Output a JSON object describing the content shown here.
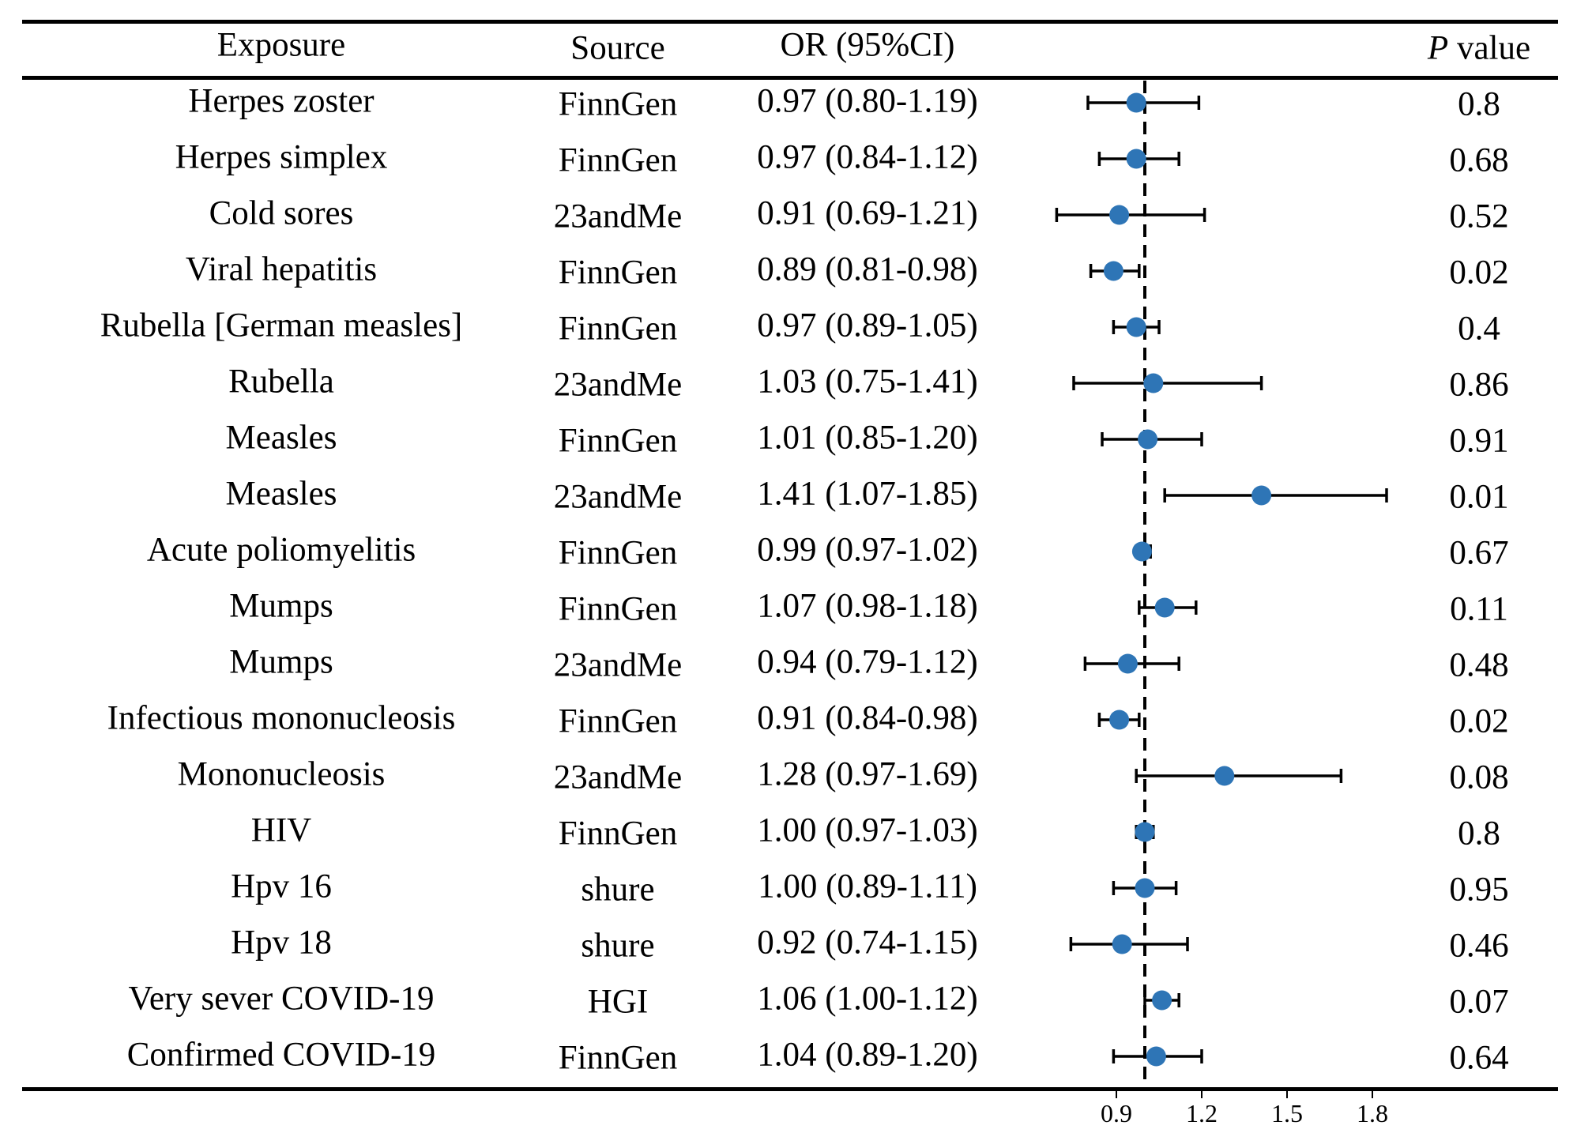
{
  "header": {
    "exposure": "Exposure",
    "source": "Source",
    "or": "OR (95%CI)",
    "p_italic": "P",
    "p_rest": " value"
  },
  "rows": [
    {
      "exposure": "Herpes zoster",
      "source": "FinnGen",
      "or_text": "0.97 (0.80-1.19)",
      "p": "0.8"
    },
    {
      "exposure": "Herpes simplex",
      "source": "FinnGen",
      "or_text": "0.97 (0.84-1.12)",
      "p": "0.68"
    },
    {
      "exposure": "Cold sores",
      "source": "23andMe",
      "or_text": "0.91 (0.69-1.21)",
      "p": "0.52"
    },
    {
      "exposure": "Viral hepatitis",
      "source": "FinnGen",
      "or_text": "0.89 (0.81-0.98)",
      "p": "0.02"
    },
    {
      "exposure": "Rubella [German measles]",
      "source": "FinnGen",
      "or_text": "0.97 (0.89-1.05)",
      "p": "0.4"
    },
    {
      "exposure": "Rubella",
      "source": "23andMe",
      "or_text": "1.03 (0.75-1.41)",
      "p": "0.86"
    },
    {
      "exposure": "Measles",
      "source": "FinnGen",
      "or_text": "1.01 (0.85-1.20)",
      "p": "0.91"
    },
    {
      "exposure": "Measles",
      "source": "23andMe",
      "or_text": "1.41 (1.07-1.85)",
      "p": "0.01"
    },
    {
      "exposure": "Acute poliomyelitis",
      "source": "FinnGen",
      "or_text": "0.99 (0.97-1.02)",
      "p": "0.67"
    },
    {
      "exposure": "Mumps",
      "source": "FinnGen",
      "or_text": "1.07 (0.98-1.18)",
      "p": "0.11"
    },
    {
      "exposure": "Mumps",
      "source": "23andMe",
      "or_text": "0.94 (0.79-1.12)",
      "p": "0.48"
    },
    {
      "exposure": "Infectious mononucleosis",
      "source": "FinnGen",
      "or_text": "0.91 (0.84-0.98)",
      "p": "0.02"
    },
    {
      "exposure": "Mononucleosis",
      "source": "23andMe",
      "or_text": "1.28 (0.97-1.69)",
      "p": "0.08"
    },
    {
      "exposure": "HIV",
      "source": "FinnGen",
      "or_text": "1.00 (0.97-1.03)",
      "p": "0.8"
    },
    {
      "exposure": "Hpv 16",
      "source": "shure",
      "or_text": "1.00 (0.89-1.11)",
      "p": "0.95"
    },
    {
      "exposure": "Hpv 18",
      "source": "shure",
      "or_text": "0.92 (0.74-1.15)",
      "p": "0.46"
    },
    {
      "exposure": "Very sever COVID-19",
      "source": "HGI",
      "or_text": "1.06 (1.00-1.12)",
      "p": "0.07"
    },
    {
      "exposure": "Confirmed COVID-19",
      "source": "FinnGen",
      "or_text": "1.04 (0.89-1.20)",
      "p": "0.64"
    }
  ],
  "chart_data": {
    "type": "forest",
    "xlabel": "",
    "ylabel": "",
    "reference_line": 1.0,
    "xticks": [
      0.9,
      1.2,
      1.5,
      1.8
    ],
    "xlim": [
      0.6,
      1.9
    ],
    "point_color": "#2e75b6",
    "series": [
      {
        "name": "OR (95%CI)",
        "points": [
          {
            "label": "Herpes zoster",
            "or": 0.97,
            "lo": 0.8,
            "hi": 1.19
          },
          {
            "label": "Herpes simplex",
            "or": 0.97,
            "lo": 0.84,
            "hi": 1.12
          },
          {
            "label": "Cold sores",
            "or": 0.91,
            "lo": 0.69,
            "hi": 1.21
          },
          {
            "label": "Viral hepatitis",
            "or": 0.89,
            "lo": 0.81,
            "hi": 0.98
          },
          {
            "label": "Rubella [German measles]",
            "or": 0.97,
            "lo": 0.89,
            "hi": 1.05
          },
          {
            "label": "Rubella",
            "or": 1.03,
            "lo": 0.75,
            "hi": 1.41
          },
          {
            "label": "Measles",
            "or": 1.01,
            "lo": 0.85,
            "hi": 1.2
          },
          {
            "label": "Measles",
            "or": 1.41,
            "lo": 1.07,
            "hi": 1.85
          },
          {
            "label": "Acute poliomyelitis",
            "or": 0.99,
            "lo": 0.97,
            "hi": 1.02
          },
          {
            "label": "Mumps",
            "or": 1.07,
            "lo": 0.98,
            "hi": 1.18
          },
          {
            "label": "Mumps",
            "or": 0.94,
            "lo": 0.79,
            "hi": 1.12
          },
          {
            "label": "Infectious mononucleosis",
            "or": 0.91,
            "lo": 0.84,
            "hi": 0.98
          },
          {
            "label": "Mononucleosis",
            "or": 1.28,
            "lo": 0.97,
            "hi": 1.69
          },
          {
            "label": "HIV",
            "or": 1.0,
            "lo": 0.97,
            "hi": 1.03
          },
          {
            "label": "Hpv 16",
            "or": 1.0,
            "lo": 0.89,
            "hi": 1.11
          },
          {
            "label": "Hpv 18",
            "or": 0.92,
            "lo": 0.74,
            "hi": 1.15
          },
          {
            "label": "Very sever COVID-19",
            "or": 1.06,
            "lo": 1.0,
            "hi": 1.12
          },
          {
            "label": "Confirmed COVID-19",
            "or": 1.04,
            "lo": 0.89,
            "hi": 1.2
          }
        ]
      }
    ]
  }
}
